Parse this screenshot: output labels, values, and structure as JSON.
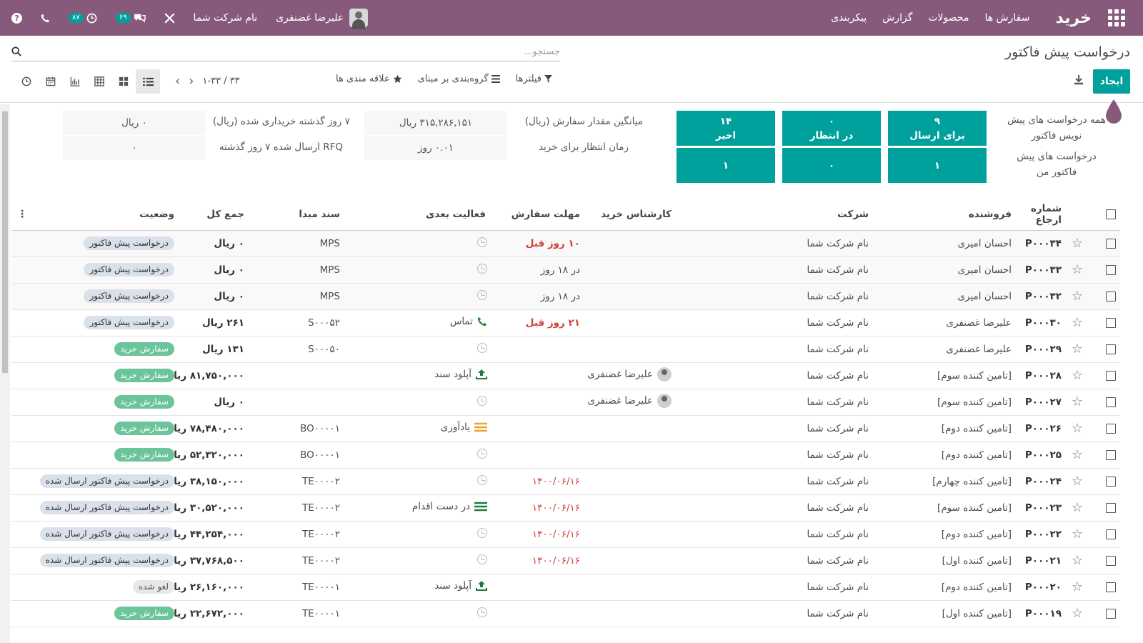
{
  "app": {
    "brand": "خرید",
    "menu": [
      "سفارش ها",
      "محصولات",
      "گزارش",
      "پیکربندی"
    ]
  },
  "systray": {
    "user_name": "علیرضا غضنفری",
    "company": "نام شرکت شما",
    "messages_count": "۶۹",
    "activities_count": "۸۷"
  },
  "control": {
    "breadcrumb": "درخواست پیش فاکتور",
    "search_placeholder": "جستجو...",
    "create_label": "ایجاد",
    "filters_label": "فیلترها",
    "groupby_label": "گروه‌بندی بر مبنای",
    "favorites_label": "علاقه مندی ها",
    "pager": "۱-۳۳ / ۳۳"
  },
  "dashboard": {
    "row_labels": [
      "همه درخواست های پیش نویس فاکتور",
      "درخواست های پیش فاکتور من"
    ],
    "tiles": [
      {
        "title": "برای ارسال",
        "all": "۹",
        "mine": "۱"
      },
      {
        "title": "در انتظار",
        "all": "۰",
        "mine": "۰"
      },
      {
        "title": "اخیر",
        "all": "۱۴",
        "mine": "۱"
      }
    ],
    "stats": [
      {
        "label": "میانگین مقدار سفارش (ریال)",
        "value": "۳۱۵,۲۸۶,۱۵۱ ریال"
      },
      {
        "label": "زمان انتظار برای خرید",
        "value": "۰.۰۱  روز"
      },
      {
        "label": "۷ روز گذشته خریداری شده (ریال)",
        "value": "۰ ریال"
      },
      {
        "label": "RFQ ارسال شده ۷ روز گذشته",
        "value": "۰"
      }
    ]
  },
  "table": {
    "headers": [
      "شماره ارجاع",
      "فروشنده",
      "شرکت",
      "کارشناس خرید",
      "مهلت سفارش",
      "فعالیت بعدی",
      "سند مبدا",
      "جمع کل",
      "وضعیت"
    ],
    "rows": [
      {
        "ref": "P۰۰۰۳۴",
        "vendor": "احسان امیری",
        "company": "نام شرکت شما",
        "buyer": "",
        "deadline": "۱۰ روز قبل",
        "deadline_style": "late",
        "activity": "",
        "activity_icon": "clock",
        "origin": "MPS",
        "total": "۰ ریال",
        "status": "درخواست پیش فاکتور",
        "status_style": "rfq"
      },
      {
        "ref": "P۰۰۰۳۳",
        "vendor": "احسان امیری",
        "company": "نام شرکت شما",
        "buyer": "",
        "deadline": "در ۱۸ روز",
        "deadline_style": "normal",
        "activity": "",
        "activity_icon": "clock",
        "origin": "MPS",
        "total": "۰ ریال",
        "status": "درخواست پیش فاکتور",
        "status_style": "rfq"
      },
      {
        "ref": "P۰۰۰۳۲",
        "vendor": "احسان امیری",
        "company": "نام شرکت شما",
        "buyer": "",
        "deadline": "در ۱۸ روز",
        "deadline_style": "normal",
        "activity": "",
        "activity_icon": "clock",
        "origin": "MPS",
        "total": "۰ ریال",
        "status": "درخواست پیش فاکتور",
        "status_style": "rfq"
      },
      {
        "ref": "P۰۰۰۳۰",
        "vendor": "علیرضا غضنفری",
        "company": "نام شرکت شما",
        "buyer": "",
        "deadline": "۲۱ روز قبل",
        "deadline_style": "late",
        "activity": "تماس",
        "activity_icon": "phone",
        "origin": "S۰۰۰۵۲",
        "total": "۲۶۱ ریال",
        "status": "درخواست پیش فاکتور",
        "status_style": "rfq"
      },
      {
        "ref": "P۰۰۰۲۹",
        "vendor": "علیرضا غضنفری",
        "company": "نام شرکت شما",
        "buyer": "",
        "deadline": "",
        "deadline_style": "normal",
        "activity": "",
        "activity_icon": "clock",
        "origin": "S۰۰۰۵۰",
        "total": "۱۳۱ ریال",
        "status": "سفارش خرید",
        "status_style": "po"
      },
      {
        "ref": "P۰۰۰۲۸",
        "vendor": "[تامین کننده سوم]",
        "company": "نام شرکت شما",
        "buyer": "علیرضا غضنفری",
        "deadline": "",
        "deadline_style": "normal",
        "activity": "آپلود سند",
        "activity_icon": "upload",
        "origin": "",
        "total": "۸۱,۷۵۰,۰۰۰ ریال",
        "status": "سفارش خرید",
        "status_style": "po"
      },
      {
        "ref": "P۰۰۰۲۷",
        "vendor": "[تامین کننده سوم]",
        "company": "نام شرکت شما",
        "buyer": "علیرضا غضنفری",
        "deadline": "",
        "deadline_style": "normal",
        "activity": "",
        "activity_icon": "clock",
        "origin": "",
        "total": "۰ ریال",
        "status": "سفارش خرید",
        "status_style": "po"
      },
      {
        "ref": "P۰۰۰۲۶",
        "vendor": "[تامین کننده دوم]",
        "company": "نام شرکت شما",
        "buyer": "",
        "deadline": "",
        "deadline_style": "normal",
        "activity": "یادآوری",
        "activity_icon": "reminder",
        "origin": "BO۰۰۰۰۱",
        "total": "۷۸,۴۸۰,۰۰۰ ریال",
        "status": "سفارش خرید",
        "status_style": "po"
      },
      {
        "ref": "P۰۰۰۲۵",
        "vendor": "[تامین کننده دوم]",
        "company": "نام شرکت شما",
        "buyer": "",
        "deadline": "",
        "deadline_style": "normal",
        "activity": "",
        "activity_icon": "clock",
        "origin": "BO۰۰۰۰۱",
        "total": "۵۲,۳۲۰,۰۰۰ ریال",
        "status": "سفارش خرید",
        "status_style": "po"
      },
      {
        "ref": "P۰۰۰۲۴",
        "vendor": "[تامین کننده چهارم]",
        "company": "نام شرکت شما",
        "buyer": "",
        "deadline": "۱۴۰۰/۰۶/۱۶",
        "deadline_style": "late-date",
        "activity": "",
        "activity_icon": "clock",
        "origin": "TE۰۰۰۰۲",
        "total": "۳۸,۱۵۰,۰۰۰ ریال",
        "status": "درخواست پیش فاکتور ارسال شده",
        "status_style": "sent"
      },
      {
        "ref": "P۰۰۰۲۳",
        "vendor": "[تامین کننده سوم]",
        "company": "نام شرکت شما",
        "buyer": "",
        "deadline": "۱۴۰۰/۰۶/۱۶",
        "deadline_style": "late-date",
        "activity": "در دست اقدام",
        "activity_icon": "todo",
        "origin": "TE۰۰۰۰۲",
        "total": "۳۰,۵۲۰,۰۰۰ ریال",
        "status": "درخواست پیش فاکتور ارسال شده",
        "status_style": "sent"
      },
      {
        "ref": "P۰۰۰۲۲",
        "vendor": "[تامین کننده دوم]",
        "company": "نام شرکت شما",
        "buyer": "",
        "deadline": "۱۴۰۰/۰۶/۱۶",
        "deadline_style": "late-date",
        "activity": "",
        "activity_icon": "clock",
        "origin": "TE۰۰۰۰۲",
        "total": "۴۴,۲۵۴,۰۰۰ ریال",
        "status": "درخواست پیش فاکتور ارسال شده",
        "status_style": "sent"
      },
      {
        "ref": "P۰۰۰۲۱",
        "vendor": "[تامین کننده اول]",
        "company": "نام شرکت شما",
        "buyer": "",
        "deadline": "۱۴۰۰/۰۶/۱۶",
        "deadline_style": "late-date",
        "activity": "",
        "activity_icon": "clock",
        "origin": "TE۰۰۰۰۲",
        "total": "۳۷,۷۶۸,۵۰۰ ریال",
        "status": "درخواست پیش فاکتور ارسال شده",
        "status_style": "sent"
      },
      {
        "ref": "P۰۰۰۲۰",
        "vendor": "[تامین کننده دوم]",
        "company": "نام شرکت شما",
        "buyer": "",
        "deadline": "",
        "deadline_style": "normal",
        "activity": "آپلود سند",
        "activity_icon": "upload",
        "origin": "TE۰۰۰۰۱",
        "total": "۲۶,۱۶۰,۰۰۰ ریال",
        "status": "لغو شده",
        "status_style": "cancel"
      },
      {
        "ref": "P۰۰۰۱۹",
        "vendor": "[تامین کننده اول]",
        "company": "نام شرکت شما",
        "buyer": "",
        "deadline": "",
        "deadline_style": "normal",
        "activity": "",
        "activity_icon": "clock",
        "origin": "TE۰۰۰۰۱",
        "total": "۲۲,۶۷۲,۰۰۰ ریال",
        "status": "سفارش خرید",
        "status_style": "po"
      }
    ]
  },
  "colors": {
    "navbar": "#875a7b",
    "accent": "#00a09d",
    "late": "#d23f3a",
    "po_tag": "#6cc49a"
  }
}
